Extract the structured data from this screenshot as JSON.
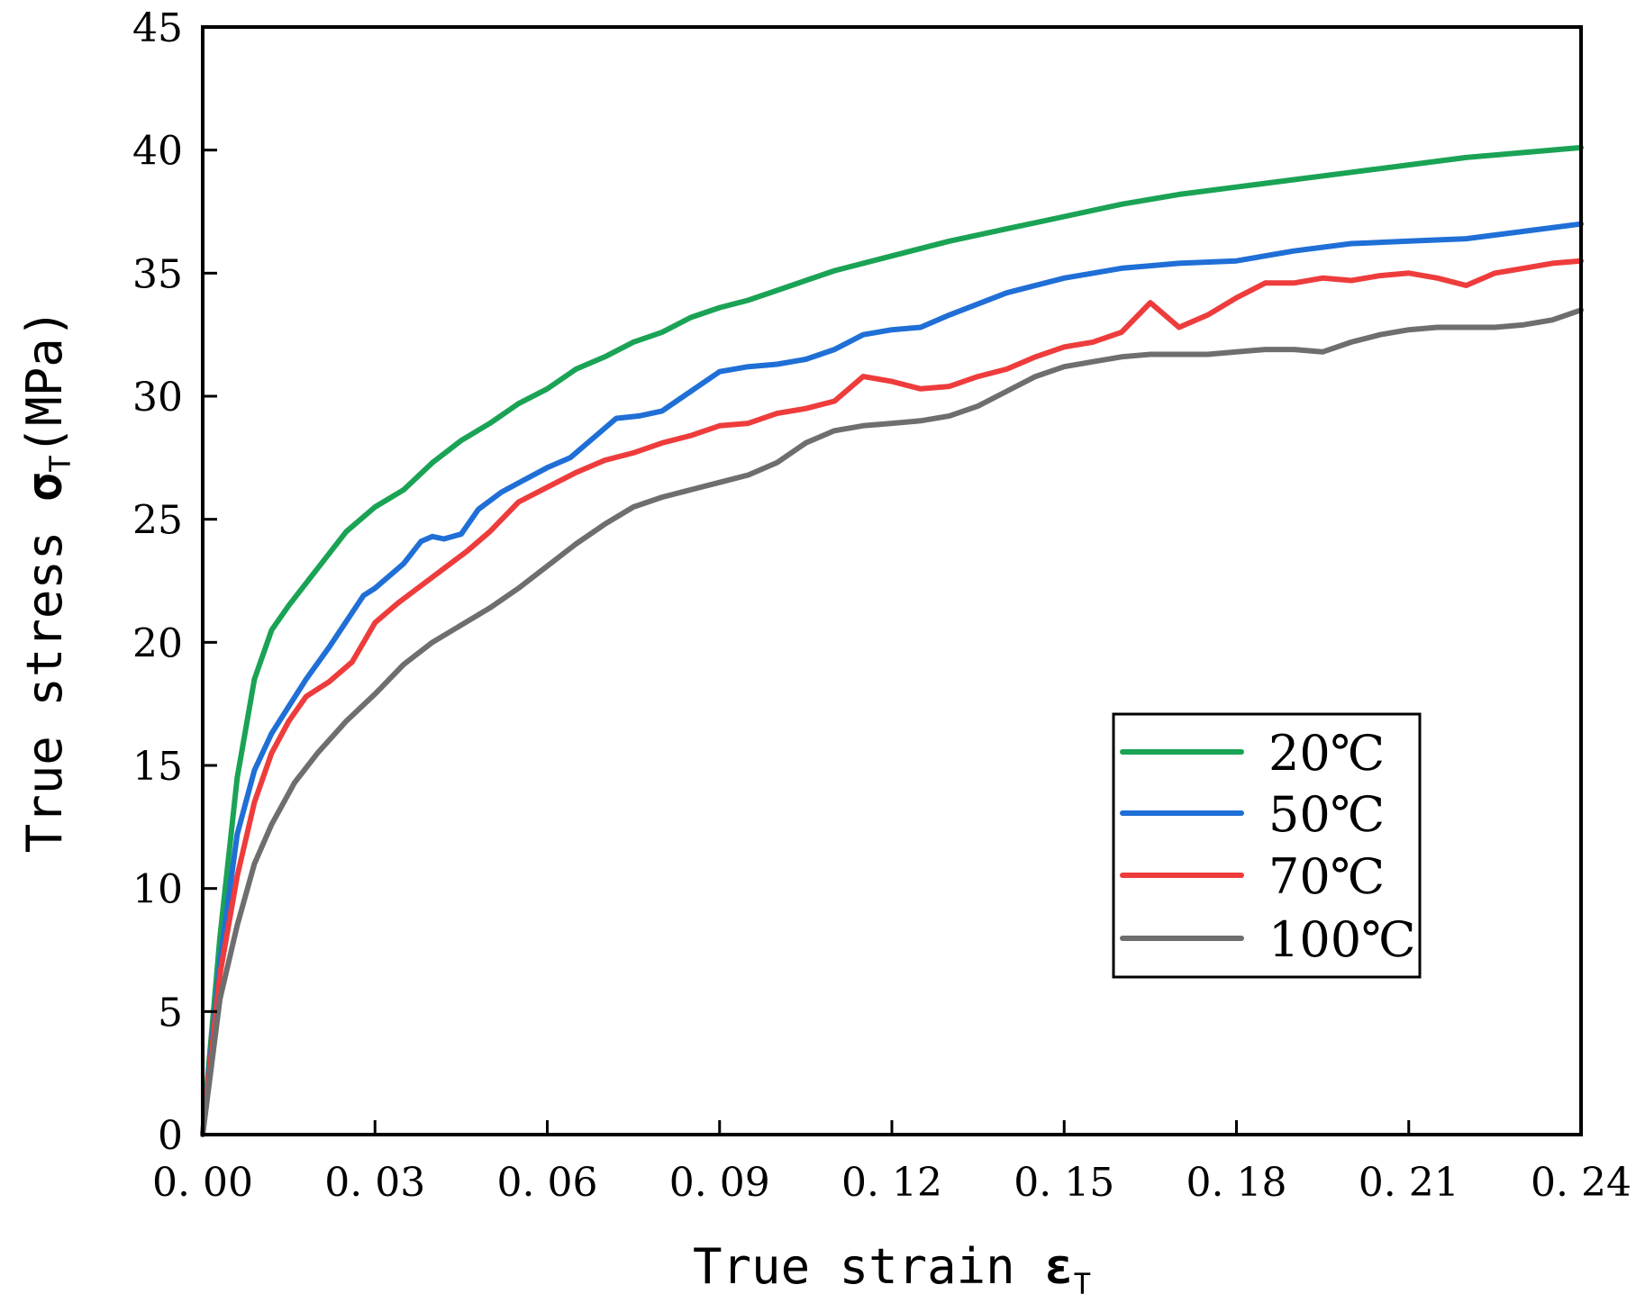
{
  "chart_data": {
    "type": "line",
    "title": "",
    "xlabel": {
      "main": "True strain ",
      "symbol": "ε",
      "sub": "T"
    },
    "ylabel": {
      "main": "True stress ",
      "symbol": "σ",
      "sub": "T",
      "unit": "(MPa)"
    },
    "xlim": [
      0,
      0.24
    ],
    "ylim": [
      0,
      45
    ],
    "xticks": [
      0,
      0.03,
      0.06,
      0.09,
      0.12,
      0.15,
      0.18,
      0.21,
      0.24
    ],
    "xtick_labels": [
      "0. 00",
      "0. 03",
      "0. 06",
      "0. 09",
      "0. 12",
      "0. 15",
      "0. 18",
      "0. 21",
      "0. 24"
    ],
    "yticks": [
      0,
      5,
      10,
      15,
      20,
      25,
      30,
      35,
      40,
      45
    ],
    "ytick_labels": [
      "0",
      "5",
      "10",
      "15",
      "20",
      "25",
      "30",
      "35",
      "40",
      "45"
    ],
    "grid": false,
    "legend_position": "center-right",
    "series": [
      {
        "name": "20℃",
        "color": "#1aa355",
        "x": [
          0,
          0.003,
          0.006,
          0.009,
          0.012,
          0.015,
          0.02,
          0.025,
          0.03,
          0.035,
          0.04,
          0.045,
          0.05,
          0.055,
          0.06,
          0.065,
          0.07,
          0.075,
          0.08,
          0.085,
          0.09,
          0.095,
          0.1,
          0.105,
          0.11,
          0.12,
          0.13,
          0.14,
          0.15,
          0.16,
          0.17,
          0.18,
          0.19,
          0.2,
          0.21,
          0.22,
          0.23,
          0.24
        ],
        "y": [
          0,
          8,
          14.5,
          18.5,
          20.5,
          21.5,
          23,
          24.5,
          25.5,
          26.2,
          27.3,
          28.2,
          28.9,
          29.7,
          30.3,
          31.1,
          31.6,
          32.2,
          32.6,
          33.2,
          33.6,
          33.9,
          34.3,
          34.7,
          35.1,
          35.7,
          36.3,
          36.8,
          37.3,
          37.8,
          38.2,
          38.5,
          38.8,
          39.1,
          39.4,
          39.7,
          39.9,
          40.1
        ]
      },
      {
        "name": "50℃",
        "color": "#1f6fd6",
        "x": [
          0,
          0.003,
          0.006,
          0.009,
          0.012,
          0.015,
          0.018,
          0.022,
          0.026,
          0.028,
          0.03,
          0.035,
          0.038,
          0.04,
          0.042,
          0.045,
          0.048,
          0.052,
          0.056,
          0.06,
          0.064,
          0.068,
          0.072,
          0.076,
          0.08,
          0.085,
          0.09,
          0.095,
          0.1,
          0.105,
          0.11,
          0.115,
          0.12,
          0.125,
          0.13,
          0.14,
          0.15,
          0.16,
          0.17,
          0.18,
          0.19,
          0.2,
          0.21,
          0.22,
          0.23,
          0.24
        ],
        "y": [
          0,
          7,
          12.2,
          14.8,
          16.3,
          17.4,
          18.5,
          19.8,
          21.2,
          21.9,
          22.2,
          23.2,
          24.1,
          24.3,
          24.2,
          24.4,
          25.4,
          26.1,
          26.6,
          27.1,
          27.5,
          28.3,
          29.1,
          29.2,
          29.4,
          30.2,
          31.0,
          31.2,
          31.3,
          31.5,
          31.9,
          32.5,
          32.7,
          32.8,
          33.3,
          34.2,
          34.8,
          35.2,
          35.4,
          35.5,
          35.9,
          36.2,
          36.3,
          36.4,
          36.7,
          37.0
        ]
      },
      {
        "name": "70℃",
        "color": "#ee3c3c",
        "x": [
          0,
          0.003,
          0.006,
          0.009,
          0.012,
          0.015,
          0.018,
          0.022,
          0.026,
          0.03,
          0.034,
          0.038,
          0.042,
          0.046,
          0.05,
          0.055,
          0.06,
          0.065,
          0.07,
          0.075,
          0.08,
          0.085,
          0.09,
          0.095,
          0.1,
          0.105,
          0.11,
          0.115,
          0.12,
          0.125,
          0.13,
          0.135,
          0.14,
          0.145,
          0.15,
          0.155,
          0.16,
          0.165,
          0.17,
          0.175,
          0.18,
          0.185,
          0.19,
          0.195,
          0.2,
          0.205,
          0.21,
          0.215,
          0.22,
          0.225,
          0.23,
          0.235,
          0.24
        ],
        "y": [
          0,
          6.5,
          10.5,
          13.5,
          15.5,
          16.8,
          17.8,
          18.4,
          19.2,
          20.8,
          21.6,
          22.3,
          23.0,
          23.7,
          24.5,
          25.7,
          26.3,
          26.9,
          27.4,
          27.7,
          28.1,
          28.4,
          28.8,
          28.9,
          29.3,
          29.5,
          29.8,
          30.8,
          30.6,
          30.3,
          30.4,
          30.8,
          31.1,
          31.6,
          32.0,
          32.2,
          32.6,
          33.8,
          32.8,
          33.3,
          34.0,
          34.6,
          34.6,
          34.8,
          34.7,
          34.9,
          35.0,
          34.8,
          34.5,
          35.0,
          35.2,
          35.4,
          35.5
        ]
      },
      {
        "name": "100℃",
        "color": "#6e6e6e",
        "x": [
          0,
          0.003,
          0.006,
          0.009,
          0.012,
          0.016,
          0.02,
          0.025,
          0.03,
          0.035,
          0.04,
          0.045,
          0.05,
          0.055,
          0.06,
          0.065,
          0.07,
          0.075,
          0.08,
          0.085,
          0.09,
          0.095,
          0.1,
          0.105,
          0.11,
          0.115,
          0.12,
          0.125,
          0.13,
          0.135,
          0.14,
          0.145,
          0.15,
          0.155,
          0.16,
          0.165,
          0.17,
          0.175,
          0.18,
          0.185,
          0.19,
          0.195,
          0.2,
          0.205,
          0.21,
          0.215,
          0.22,
          0.225,
          0.23,
          0.235,
          0.24
        ],
        "y": [
          0,
          5.5,
          8.5,
          11,
          12.6,
          14.3,
          15.5,
          16.8,
          17.9,
          19.1,
          20.0,
          20.7,
          21.4,
          22.2,
          23.1,
          24.0,
          24.8,
          25.5,
          25.9,
          26.2,
          26.5,
          26.8,
          27.3,
          28.1,
          28.6,
          28.8,
          28.9,
          29.0,
          29.2,
          29.6,
          30.2,
          30.8,
          31.2,
          31.4,
          31.6,
          31.7,
          31.7,
          31.7,
          31.8,
          31.9,
          31.9,
          31.8,
          32.2,
          32.5,
          32.7,
          32.8,
          32.8,
          32.8,
          32.9,
          33.1,
          33.5
        ]
      }
    ]
  }
}
